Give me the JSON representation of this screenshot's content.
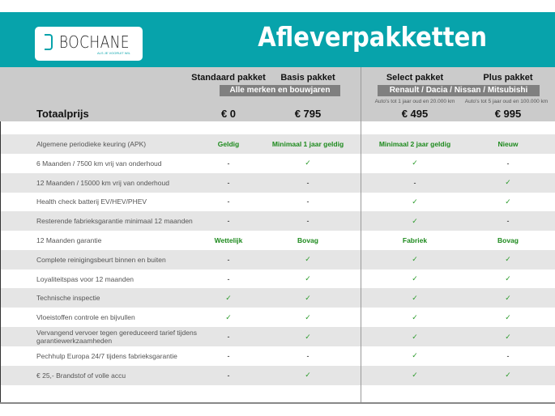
{
  "header": {
    "logo_text": "BOCHANE",
    "logo_tagline": "ALS JE VOORUIT WIL",
    "title": "Afleverpakketten"
  },
  "columns": [
    {
      "name": "Standaard pakket",
      "price": "€ 0"
    },
    {
      "name": "Basis pakket",
      "price": "€ 795"
    },
    {
      "name": "Select pakket",
      "price": "€ 495",
      "note": "Auto's tot 1 jaar oud en 20.000 km"
    },
    {
      "name": "Plus pakket",
      "price": "€ 995",
      "note": "Auto's tot 5 jaar oud en 100.000 km"
    }
  ],
  "groups": [
    "Alle merken en bouwjaren",
    "Renault / Dacia / Nissan / Mitsubishi"
  ],
  "total_label": "Totaalprijs",
  "rows": [
    {
      "label": "Algemene periodieke keuring (APK)",
      "values": [
        "Geldig",
        "Minimaal 1 jaar geldig",
        "Minimaal 2 jaar geldig",
        "Nieuw"
      ]
    },
    {
      "label": "6 Maanden / 7500 km vrij van onderhoud",
      "values": [
        "-",
        "✓",
        "✓",
        "-"
      ]
    },
    {
      "label": "12 Maanden / 15000 km vrij van onderhoud",
      "values": [
        "-",
        "-",
        "-",
        "✓"
      ]
    },
    {
      "label": "Health check batterij EV/HEV/PHEV",
      "values": [
        "-",
        "-",
        "✓",
        "✓"
      ]
    },
    {
      "label": "Resterende fabrieksgarantie minimaal 12 maanden",
      "values": [
        "-",
        "-",
        "✓",
        "-"
      ]
    },
    {
      "label": "12 Maanden  garantie",
      "values": [
        "Wettelijk",
        "Bovag",
        "Fabriek",
        "Bovag"
      ]
    },
    {
      "label": "Complete reinigingsbeurt binnen en buiten",
      "values": [
        "-",
        "✓",
        "✓",
        "✓"
      ]
    },
    {
      "label": "Loyaliteitspas voor 12 maanden",
      "values": [
        "-",
        "✓",
        "✓",
        "✓"
      ]
    },
    {
      "label": "Technische inspectie",
      "values": [
        "✓",
        "✓",
        "✓",
        "✓"
      ]
    },
    {
      "label": "Vloeistoffen controle en bijvullen",
      "values": [
        "✓",
        "✓",
        "✓",
        "✓"
      ]
    },
    {
      "label": "Vervangend vervoer tegen gereduceerd tarief tijdens garantiewerkzaamheden",
      "values": [
        "-",
        "✓",
        "✓",
        "✓"
      ]
    },
    {
      "label": "Pechhulp Europa 24/7 tijdens fabrieksgarantie",
      "values": [
        "-",
        "-",
        "✓",
        "-"
      ]
    },
    {
      "label": "€ 25,- Brandstof of  volle accu",
      "values": [
        "-",
        "✓",
        "✓",
        "✓"
      ]
    }
  ],
  "colors": {
    "brand": "#07a3ab",
    "check": "#2a9a2a",
    "band": "#cbcbcb",
    "group": "#808080"
  }
}
